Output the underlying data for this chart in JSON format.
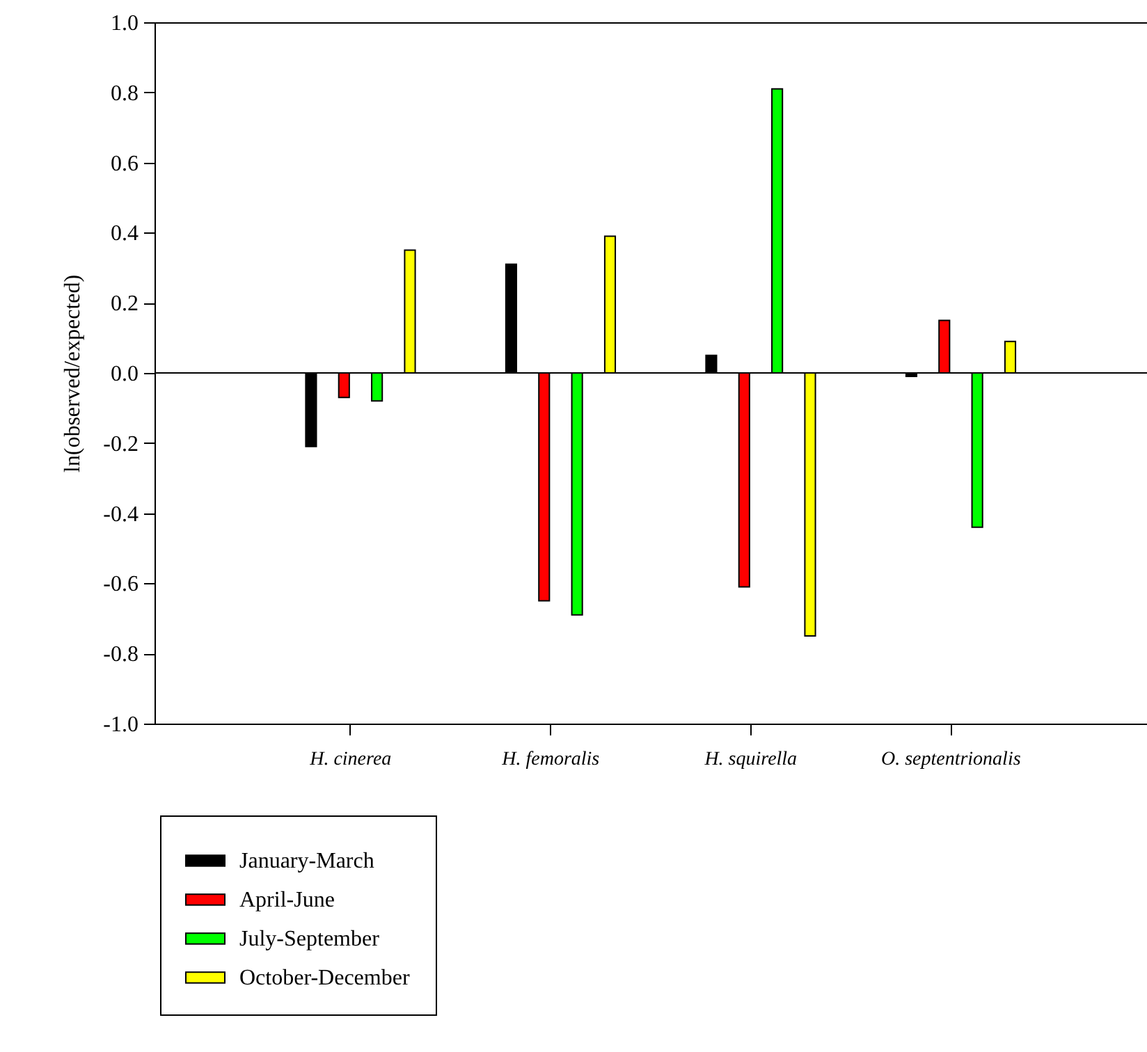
{
  "chart_data": {
    "type": "bar",
    "ylabel": "ln(observed/expected)",
    "categories": [
      "H. cinerea",
      "H. femoralis",
      "H. squirella",
      "O. septentrionalis"
    ],
    "series": [
      {
        "name": "January-March",
        "color": "#000000",
        "values": [
          -0.21,
          0.31,
          0.05,
          -0.01
        ]
      },
      {
        "name": "April-June",
        "color": "#ff0000",
        "values": [
          -0.07,
          -0.65,
          -0.61,
          0.15
        ]
      },
      {
        "name": "July-September",
        "color": "#00ff00",
        "values": [
          -0.08,
          -0.69,
          0.81,
          -0.44
        ]
      },
      {
        "name": "October-December",
        "color": "#ffff00",
        "values": [
          0.35,
          0.39,
          -0.75,
          0.09
        ]
      }
    ],
    "ylim": [
      -1.0,
      1.0
    ],
    "yticks": [
      {
        "value": -1,
        "label": "-1.0"
      },
      {
        "value": -0.8,
        "label": "-0.8"
      },
      {
        "value": -0.6,
        "label": "-0.6"
      },
      {
        "value": -0.4,
        "label": "-0.4"
      },
      {
        "value": -0.2,
        "label": "-0.2"
      },
      {
        "value": 0,
        "label": "0.0"
      },
      {
        "value": 0.2,
        "label": "0.2"
      },
      {
        "value": 0.4,
        "label": "0.4"
      },
      {
        "value": 0.6,
        "label": "0.6"
      },
      {
        "value": 0.8,
        "label": "0.8"
      },
      {
        "value": 1,
        "label": "1.0"
      }
    ],
    "ref_lines": [
      {
        "axis": "y",
        "value": 0,
        "color": "#000000"
      }
    ],
    "legend": "bottom left",
    "grid": false
  }
}
